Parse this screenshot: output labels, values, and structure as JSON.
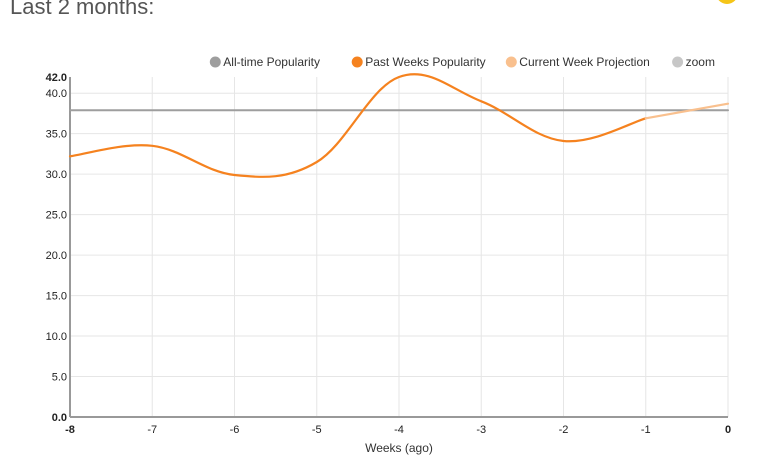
{
  "page": {
    "heading": "Last 2 months:"
  },
  "legend": [
    {
      "label": "All-time Popularity",
      "color": "#9e9e9e",
      "icon": "circle-icon"
    },
    {
      "label": "Past Weeks Popularity",
      "color": "#f5821f",
      "icon": "circle-icon"
    },
    {
      "label": "Current Week Projection",
      "color": "#f9c08e",
      "icon": "circle-icon"
    },
    {
      "label": "zoom",
      "color": "#c7c7c7",
      "icon": "circle-icon"
    }
  ],
  "chart_data": {
    "type": "line",
    "xlabel": "Weeks (ago)",
    "ylabel": "",
    "xlim": [
      -8,
      0
    ],
    "ylim": [
      0,
      42
    ],
    "x_ticks": [
      "-8",
      "-7",
      "-6",
      "-5",
      "-4",
      "-3",
      "-2",
      "-1",
      "0"
    ],
    "y_ticks": [
      "0.0",
      "5.0",
      "10.0",
      "15.0",
      "20.0",
      "25.0",
      "30.0",
      "35.0",
      "40.0",
      "42.0"
    ],
    "grid": true,
    "legend_position": "top-right",
    "series": [
      {
        "name": "All-time Popularity",
        "color": "#9e9e9e",
        "x": [
          -8,
          0
        ],
        "y": [
          37.9,
          37.9
        ]
      },
      {
        "name": "Past Weeks Popularity",
        "color": "#f5821f",
        "x": [
          -8,
          -7,
          -6,
          -5,
          -4,
          -3,
          -2,
          -1
        ],
        "y": [
          32.2,
          33.5,
          29.9,
          31.5,
          42.0,
          39.0,
          34.1,
          36.9
        ]
      },
      {
        "name": "Current Week Projection",
        "color": "#f9c08e",
        "x": [
          -1,
          0
        ],
        "y": [
          36.9,
          38.7
        ]
      }
    ]
  }
}
